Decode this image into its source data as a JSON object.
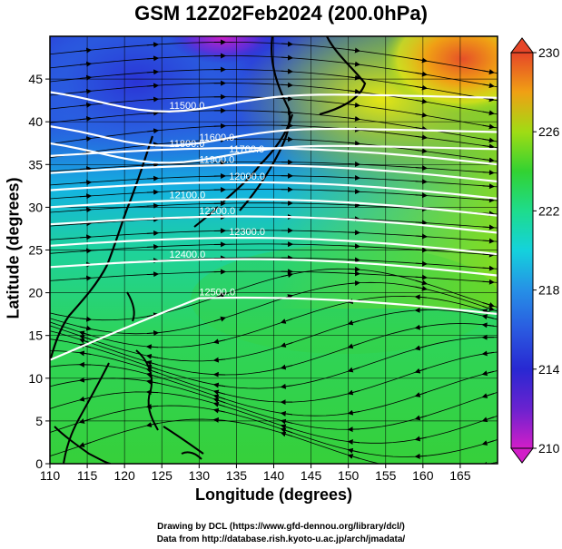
{
  "title": "GSM 12Z02Feb2024 (200.0hPa)",
  "xlabel": "Longitude (degrees)",
  "ylabel": "Latitude  (degrees)",
  "credit_line1": "Drawing by DCL (https://www.gfd-dennou.org/library/dcl/)",
  "credit_line2": "Data from http://database.rish.kyoto-u.ac.jp/arch/jmadata/",
  "chart_data": {
    "type": "heatmap",
    "title": "GSM 12Z02Feb2024 (200.0hPa)",
    "xlabel": "Longitude (degrees)",
    "ylabel": "Latitude  (degrees)",
    "xlim": [
      110,
      170
    ],
    "ylim": [
      0,
      50
    ],
    "xticks": [
      110,
      115,
      120,
      125,
      130,
      135,
      140,
      145,
      150,
      155,
      160,
      165
    ],
    "yticks": [
      0,
      5,
      10,
      15,
      20,
      25,
      30,
      35,
      40,
      45
    ],
    "grid": true,
    "colorbar": {
      "min": 210,
      "max": 230,
      "ticks": [
        210,
        214,
        218,
        222,
        226,
        230
      ],
      "colors": [
        "#d21ec8",
        "#2828d2",
        "#2678e6",
        "#14d2dc",
        "#1edc8c",
        "#32d232",
        "#8cdc14",
        "#e6e614",
        "#f0a014",
        "#e64628"
      ]
    },
    "contour_labels": [
      "11500.0",
      "11600.0",
      "11700.0",
      "11800.0",
      "11900.0",
      "12000.0",
      "12100.0",
      "12200.0",
      "12300.0",
      "12400.0",
      "12500.0"
    ]
  }
}
